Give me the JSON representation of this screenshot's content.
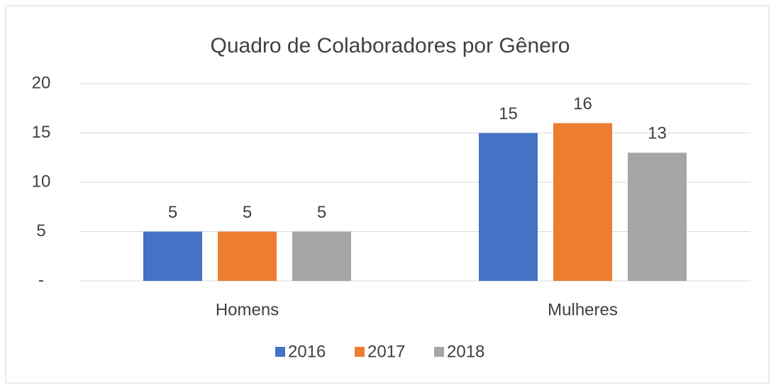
{
  "chart_data": {
    "type": "bar",
    "title": "Quadro de Colaboradores por Gênero",
    "categories": [
      "Homens",
      "Mulheres"
    ],
    "series": [
      {
        "name": "2016",
        "color": "#4472c4",
        "values": [
          5,
          15
        ]
      },
      {
        "name": "2017",
        "color": "#ed7d31",
        "values": [
          5,
          16
        ]
      },
      {
        "name": "2018",
        "color": "#a5a5a5",
        "values": [
          5,
          13
        ]
      }
    ],
    "ylim": [
      0,
      20
    ],
    "yticks": [
      {
        "value": 0,
        "label": "-"
      },
      5,
      10,
      15,
      20
    ],
    "grid": true
  }
}
